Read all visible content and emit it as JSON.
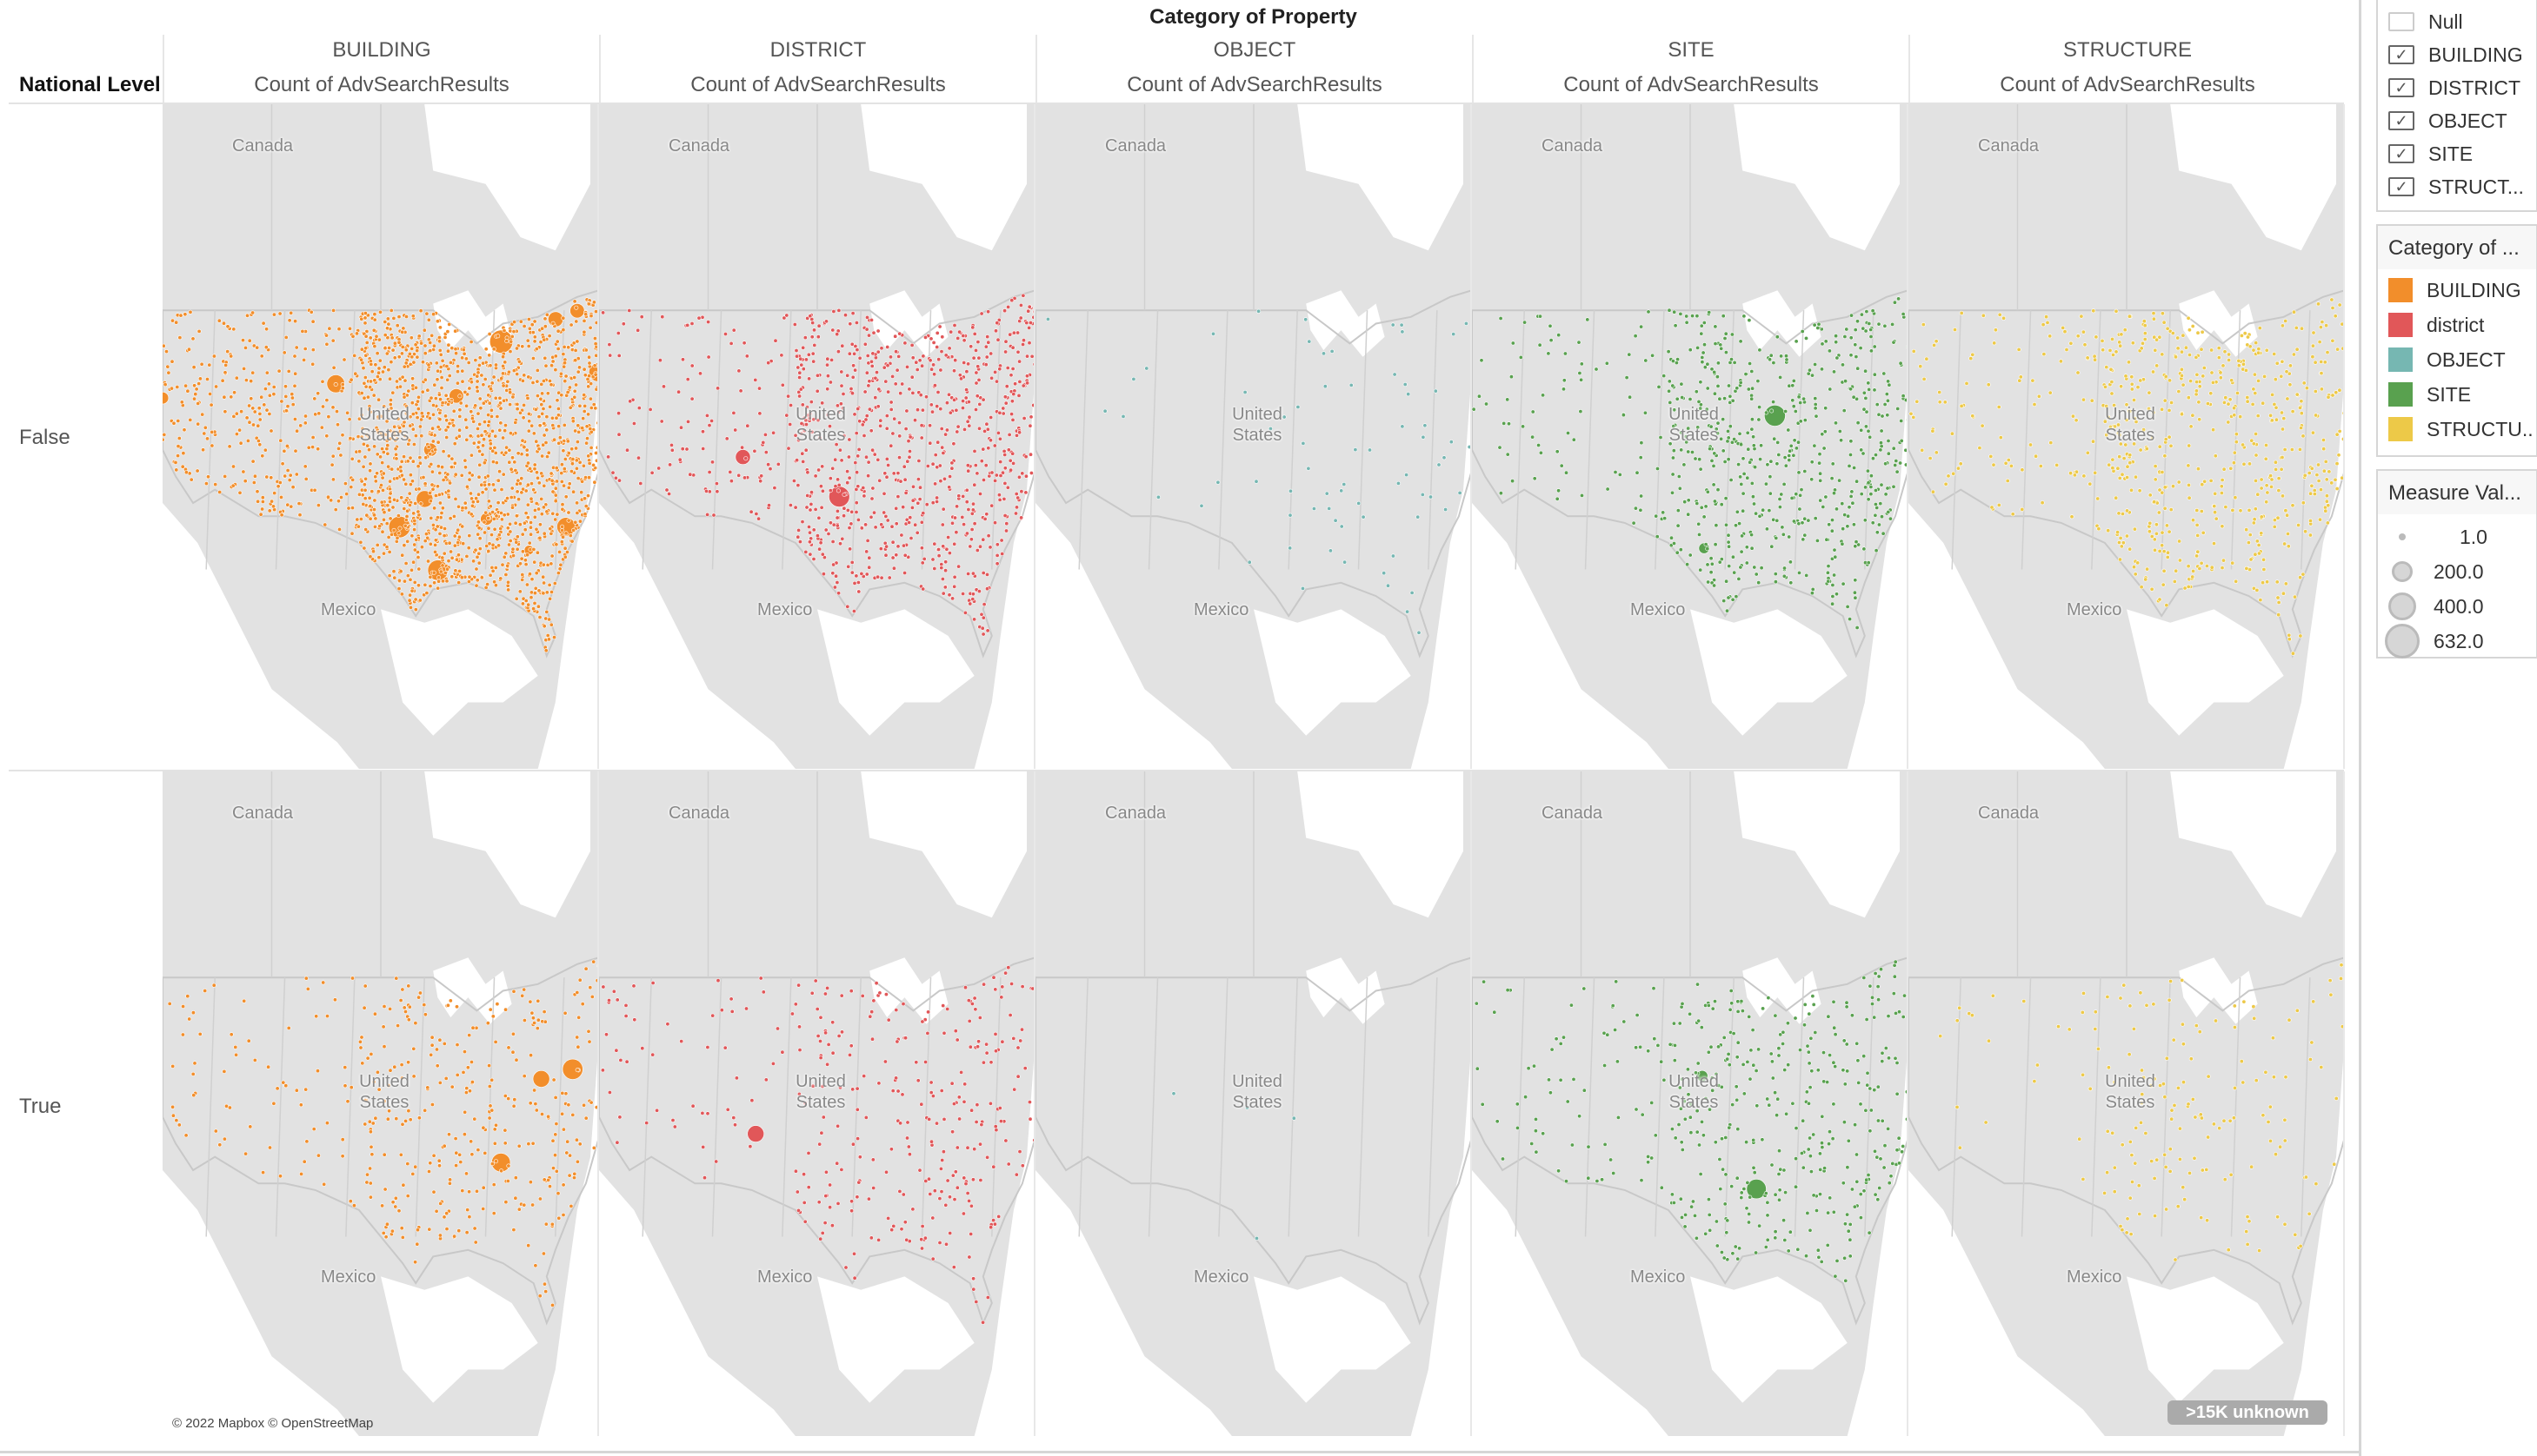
{
  "title": "Category of Property",
  "row_header": "National Level",
  "columns": [
    {
      "category": "BUILDING",
      "measure": "Count of AdvSearchResults"
    },
    {
      "category": "DISTRICT",
      "measure": "Count of AdvSearchResults"
    },
    {
      "category": "OBJECT",
      "measure": "Count of AdvSearchResults"
    },
    {
      "category": "SITE",
      "measure": "Count of AdvSearchResults"
    },
    {
      "category": "STRUCTURE",
      "measure": "Count of AdvSearchResults"
    }
  ],
  "rows": [
    "False",
    "True"
  ],
  "map_labels": {
    "canada": "Canada",
    "us": "United States",
    "mexico": "Mexico"
  },
  "colors": {
    "BUILDING": "#f28e2b",
    "DISTRICT": "#e15759",
    "OBJECT": "#76b7b2",
    "SITE": "#59a14f",
    "STRUCTURE": "#edc948"
  },
  "attribution": "© 2022 Mapbox © OpenStreetMap",
  "unknown_badge": ">15K unknown",
  "filter": {
    "items": [
      {
        "label": "Null",
        "checked": false
      },
      {
        "label": "BUILDING",
        "checked": true
      },
      {
        "label": "DISTRICT",
        "checked": true
      },
      {
        "label": "OBJECT",
        "checked": true
      },
      {
        "label": "SITE",
        "checked": true
      },
      {
        "label": "STRUCT...",
        "checked": true
      }
    ]
  },
  "color_legend": {
    "title": "Category of ...",
    "items": [
      {
        "label": "BUILDING",
        "color": "#f28e2b"
      },
      {
        "label": "district",
        "color": "#e15759"
      },
      {
        "label": "OBJECT",
        "color": "#76b7b2"
      },
      {
        "label": "SITE",
        "color": "#59a14f"
      },
      {
        "label": "STRUCTU..",
        "color": "#edc948"
      }
    ]
  },
  "size_legend": {
    "title": "Measure Val...",
    "items": [
      "1.0",
      "200.0",
      "400.0",
      "632.0"
    ]
  }
}
